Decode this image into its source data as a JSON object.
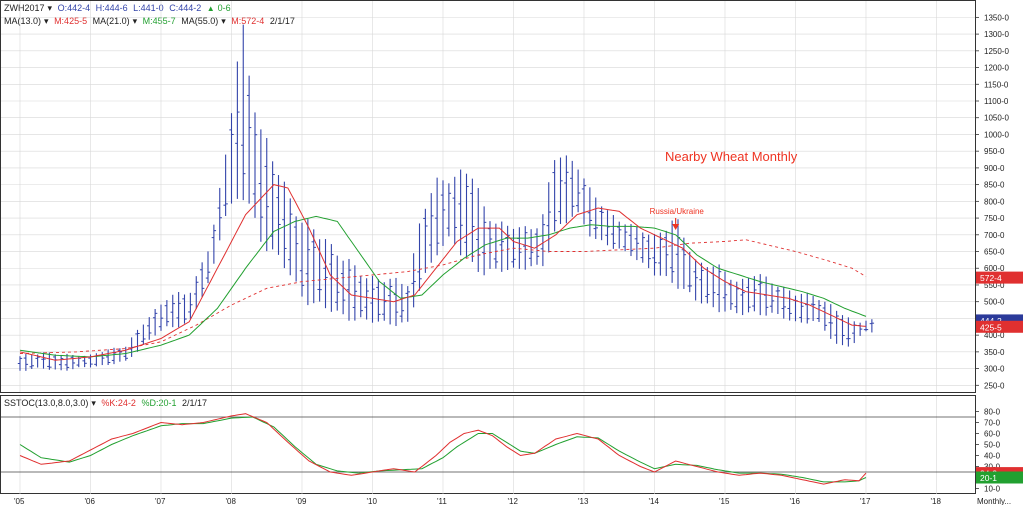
{
  "chart_data": {
    "type": "ohlc",
    "title": "Nearby Wheat Monthly",
    "annotation": "Russia/Ukraine",
    "timeframe_label": "Monthly...",
    "x_tick_labels": [
      "'05",
      "'06",
      "'07",
      "'08",
      "'09",
      "'10",
      "'11",
      "'12",
      "'13",
      "'14",
      "'15",
      "'16",
      "'17",
      "'18"
    ],
    "y_tick_labels": [
      "250-0",
      "300-0",
      "350-0",
      "400-0",
      "450-0",
      "500-0",
      "550-0",
      "600-0",
      "650-0",
      "700-0",
      "750-0",
      "800-0",
      "850-0",
      "900-0",
      "950-0",
      "1000-0",
      "1050-0",
      "1100-0",
      "1150-0",
      "1200-0",
      "1250-0",
      "1300-0",
      "1350-0"
    ],
    "ylim": [
      230,
      1390
    ],
    "grid": true,
    "header": {
      "symbol": "ZWH2017",
      "ohlc_open": "O:442-4",
      "ohlc_high": "H:444-6",
      "ohlc_low": "L:441-0",
      "ohlc_close": "C:444-2",
      "change": "0-6",
      "ma13": "MA(13.0)",
      "ma13_val": "M:425-5",
      "ma21": "MA(21.0)",
      "ma21_val": "M:455-7",
      "ma55": "MA(55.0)",
      "ma55_val": "M:572-4",
      "date": "2/1/17"
    },
    "price_badges": {
      "ma55": "572-4",
      "close": "444-2",
      "ma13": "425-5"
    },
    "keypoints": {
      "start_year": 2005.0,
      "high": [
        [
          2005.0,
          335
        ],
        [
          2005.3,
          350
        ],
        [
          2005.6,
          340
        ],
        [
          2006.0,
          340
        ],
        [
          2006.5,
          370
        ],
        [
          2006.9,
          470
        ],
        [
          2007.1,
          520
        ],
        [
          2007.4,
          520
        ],
        [
          2007.7,
          680
        ],
        [
          2007.9,
          900
        ],
        [
          2008.15,
          1340
        ],
        [
          2008.4,
          1000
        ],
        [
          2008.7,
          880
        ],
        [
          2009.0,
          730
        ],
        [
          2009.3,
          700
        ],
        [
          2009.6,
          620
        ],
        [
          2009.9,
          580
        ],
        [
          2010.2,
          560
        ],
        [
          2010.5,
          560
        ],
        [
          2010.7,
          760
        ],
        [
          2010.9,
          850
        ],
        [
          2011.1,
          880
        ],
        [
          2011.4,
          880
        ],
        [
          2011.6,
          770
        ],
        [
          2011.9,
          720
        ],
        [
          2012.2,
          720
        ],
        [
          2012.4,
          740
        ],
        [
          2012.6,
          940
        ],
        [
          2012.9,
          920
        ],
        [
          2013.1,
          820
        ],
        [
          2013.4,
          760
        ],
        [
          2013.7,
          720
        ],
        [
          2014.0,
          700
        ],
        [
          2014.3,
          740
        ],
        [
          2014.6,
          620
        ],
        [
          2014.9,
          600
        ],
        [
          2015.2,
          560
        ],
        [
          2015.4,
          580
        ],
        [
          2015.7,
          560
        ],
        [
          2016.0,
          520
        ],
        [
          2016.3,
          520
        ],
        [
          2016.6,
          470
        ],
        [
          2016.8,
          440
        ],
        [
          2017.0,
          445
        ]
      ],
      "low": [
        [
          2005.0,
          295
        ],
        [
          2005.3,
          300
        ],
        [
          2005.6,
          295
        ],
        [
          2006.0,
          305
        ],
        [
          2006.5,
          320
        ],
        [
          2006.9,
          400
        ],
        [
          2007.1,
          420
        ],
        [
          2007.4,
          440
        ],
        [
          2007.7,
          560
        ],
        [
          2007.9,
          760
        ],
        [
          2008.15,
          820
        ],
        [
          2008.4,
          700
        ],
        [
          2008.7,
          620
        ],
        [
          2009.0,
          520
        ],
        [
          2009.3,
          480
        ],
        [
          2009.6,
          460
        ],
        [
          2009.9,
          440
        ],
        [
          2010.2,
          440
        ],
        [
          2010.5,
          430
        ],
        [
          2010.7,
          560
        ],
        [
          2010.9,
          650
        ],
        [
          2011.1,
          680
        ],
        [
          2011.4,
          620
        ],
        [
          2011.6,
          580
        ],
        [
          2011.9,
          600
        ],
        [
          2012.2,
          600
        ],
        [
          2012.4,
          600
        ],
        [
          2012.6,
          720
        ],
        [
          2012.9,
          760
        ],
        [
          2013.1,
          700
        ],
        [
          2013.4,
          660
        ],
        [
          2013.7,
          640
        ],
        [
          2014.0,
          580
        ],
        [
          2014.3,
          560
        ],
        [
          2014.6,
          500
        ],
        [
          2014.9,
          480
        ],
        [
          2015.2,
          460
        ],
        [
          2015.4,
          470
        ],
        [
          2015.7,
          460
        ],
        [
          2016.0,
          440
        ],
        [
          2016.3,
          440
        ],
        [
          2016.6,
          370
        ],
        [
          2016.8,
          370
        ],
        [
          2017.0,
          410
        ]
      ],
      "ma13": [
        [
          2005.0,
          350
        ],
        [
          2005.5,
          325
        ],
        [
          2006.0,
          335
        ],
        [
          2006.5,
          355
        ],
        [
          2007.0,
          390
        ],
        [
          2007.4,
          440
        ],
        [
          2007.8,
          600
        ],
        [
          2008.2,
          760
        ],
        [
          2008.6,
          850
        ],
        [
          2008.8,
          840
        ],
        [
          2009.1,
          720
        ],
        [
          2009.4,
          580
        ],
        [
          2009.7,
          520
        ],
        [
          2010.0,
          510
        ],
        [
          2010.3,
          500
        ],
        [
          2010.6,
          520
        ],
        [
          2010.9,
          600
        ],
        [
          2011.2,
          680
        ],
        [
          2011.5,
          720
        ],
        [
          2011.8,
          720
        ],
        [
          2012.0,
          680
        ],
        [
          2012.3,
          660
        ],
        [
          2012.6,
          700
        ],
        [
          2012.9,
          760
        ],
        [
          2013.2,
          780
        ],
        [
          2013.5,
          770
        ],
        [
          2013.8,
          720
        ],
        [
          2014.1,
          690
        ],
        [
          2014.4,
          660
        ],
        [
          2014.7,
          600
        ],
        [
          2015.0,
          560
        ],
        [
          2015.3,
          530
        ],
        [
          2015.6,
          520
        ],
        [
          2015.9,
          510
        ],
        [
          2016.2,
          490
        ],
        [
          2016.5,
          460
        ],
        [
          2016.8,
          430
        ],
        [
          2017.0,
          426
        ]
      ],
      "ma21": [
        [
          2005.0,
          355
        ],
        [
          2005.5,
          340
        ],
        [
          2006.0,
          335
        ],
        [
          2006.5,
          345
        ],
        [
          2007.0,
          370
        ],
        [
          2007.4,
          400
        ],
        [
          2007.8,
          480
        ],
        [
          2008.2,
          600
        ],
        [
          2008.6,
          710
        ],
        [
          2008.9,
          740
        ],
        [
          2009.2,
          755
        ],
        [
          2009.5,
          740
        ],
        [
          2009.8,
          650
        ],
        [
          2010.1,
          560
        ],
        [
          2010.4,
          510
        ],
        [
          2010.7,
          520
        ],
        [
          2011.0,
          580
        ],
        [
          2011.3,
          630
        ],
        [
          2011.6,
          670
        ],
        [
          2011.9,
          690
        ],
        [
          2012.2,
          690
        ],
        [
          2012.5,
          700
        ],
        [
          2012.8,
          720
        ],
        [
          2013.1,
          730
        ],
        [
          2013.4,
          725
        ],
        [
          2013.7,
          725
        ],
        [
          2014.0,
          720
        ],
        [
          2014.3,
          700
        ],
        [
          2014.6,
          640
        ],
        [
          2014.9,
          600
        ],
        [
          2015.2,
          580
        ],
        [
          2015.5,
          560
        ],
        [
          2015.8,
          545
        ],
        [
          2016.1,
          530
        ],
        [
          2016.4,
          510
        ],
        [
          2016.7,
          480
        ],
        [
          2017.0,
          456
        ]
      ],
      "ma55": [
        [
          2005.0,
          345
        ],
        [
          2005.8,
          350
        ],
        [
          2006.5,
          360
        ],
        [
          2007.0,
          380
        ],
        [
          2007.5,
          430
        ],
        [
          2008.0,
          490
        ],
        [
          2008.5,
          540
        ],
        [
          2009.0,
          560
        ],
        [
          2009.5,
          570
        ],
        [
          2010.0,
          580
        ],
        [
          2010.5,
          590
        ],
        [
          2011.0,
          610
        ],
        [
          2011.5,
          640
        ],
        [
          2012.0,
          660
        ],
        [
          2012.5,
          650
        ],
        [
          2013.0,
          650
        ],
        [
          2013.5,
          655
        ],
        [
          2014.0,
          660
        ],
        [
          2014.5,
          675
        ],
        [
          2015.0,
          680
        ],
        [
          2015.3,
          685
        ],
        [
          2015.6,
          670
        ],
        [
          2016.0,
          650
        ],
        [
          2016.5,
          620
        ],
        [
          2016.8,
          600
        ],
        [
          2017.0,
          575
        ]
      ]
    },
    "stoch": {
      "label": "SSTOC(13.0,8.0,3.0)",
      "k_label": "%K:24-2",
      "d_label": "%D:20-1",
      "date": "2/1/17",
      "ylim": [
        5,
        85
      ],
      "y_tick_labels": [
        "10-0",
        "20-0",
        "30-0",
        "40-0",
        "50-0",
        "60-0",
        "70-0",
        "80-0"
      ],
      "overbought": 75,
      "oversold": 25,
      "badges": {
        "k": "24-2",
        "d": "20-1"
      },
      "k": [
        [
          2005.0,
          40
        ],
        [
          2005.3,
          32
        ],
        [
          2005.7,
          35
        ],
        [
          2006.0,
          45
        ],
        [
          2006.3,
          55
        ],
        [
          2006.6,
          60
        ],
        [
          2007.0,
          70
        ],
        [
          2007.3,
          68
        ],
        [
          2007.6,
          70
        ],
        [
          2008.0,
          76
        ],
        [
          2008.2,
          78
        ],
        [
          2008.5,
          70
        ],
        [
          2008.8,
          52
        ],
        [
          2009.1,
          35
        ],
        [
          2009.4,
          25
        ],
        [
          2009.7,
          22
        ],
        [
          2010.0,
          25
        ],
        [
          2010.3,
          28
        ],
        [
          2010.6,
          25
        ],
        [
          2010.9,
          40
        ],
        [
          2011.1,
          52
        ],
        [
          2011.3,
          60
        ],
        [
          2011.5,
          63
        ],
        [
          2011.7,
          58
        ],
        [
          2011.9,
          48
        ],
        [
          2012.1,
          40
        ],
        [
          2012.3,
          42
        ],
        [
          2012.6,
          55
        ],
        [
          2012.9,
          60
        ],
        [
          2013.2,
          55
        ],
        [
          2013.5,
          40
        ],
        [
          2013.8,
          30
        ],
        [
          2014.0,
          25
        ],
        [
          2014.3,
          35
        ],
        [
          2014.6,
          30
        ],
        [
          2014.9,
          25
        ],
        [
          2015.2,
          22
        ],
        [
          2015.5,
          24
        ],
        [
          2015.8,
          22
        ],
        [
          2016.1,
          18
        ],
        [
          2016.4,
          14
        ],
        [
          2016.7,
          18
        ],
        [
          2016.9,
          17
        ],
        [
          2017.0,
          24
        ]
      ],
      "d": [
        [
          2005.0,
          50
        ],
        [
          2005.3,
          38
        ],
        [
          2005.7,
          34
        ],
        [
          2006.0,
          40
        ],
        [
          2006.3,
          50
        ],
        [
          2006.6,
          58
        ],
        [
          2007.0,
          67
        ],
        [
          2007.3,
          69
        ],
        [
          2007.6,
          69
        ],
        [
          2008.0,
          74
        ],
        [
          2008.3,
          75
        ],
        [
          2008.6,
          66
        ],
        [
          2008.9,
          48
        ],
        [
          2009.2,
          32
        ],
        [
          2009.5,
          26
        ],
        [
          2009.8,
          24
        ],
        [
          2010.1,
          26
        ],
        [
          2010.4,
          27
        ],
        [
          2010.7,
          28
        ],
        [
          2011.0,
          38
        ],
        [
          2011.2,
          48
        ],
        [
          2011.5,
          60
        ],
        [
          2011.7,
          60
        ],
        [
          2011.9,
          52
        ],
        [
          2012.1,
          44
        ],
        [
          2012.3,
          42
        ],
        [
          2012.6,
          50
        ],
        [
          2012.9,
          57
        ],
        [
          2013.2,
          56
        ],
        [
          2013.5,
          44
        ],
        [
          2013.8,
          34
        ],
        [
          2014.0,
          28
        ],
        [
          2014.3,
          32
        ],
        [
          2014.6,
          31
        ],
        [
          2014.9,
          27
        ],
        [
          2015.2,
          24
        ],
        [
          2015.5,
          24
        ],
        [
          2015.8,
          23
        ],
        [
          2016.1,
          20
        ],
        [
          2016.4,
          16
        ],
        [
          2016.7,
          16
        ],
        [
          2016.9,
          17
        ],
        [
          2017.0,
          20
        ]
      ]
    },
    "colors": {
      "bars": "#3344aa",
      "ma13": "#e03030",
      "ma21": "#22a030",
      "ma55": "#e03030",
      "grid": "#d8d8d8",
      "frame": "#333333",
      "axis_text": "#222222",
      "k": "#e03030",
      "d": "#22a030",
      "title": "#ee3322",
      "up": "#22a030"
    }
  }
}
